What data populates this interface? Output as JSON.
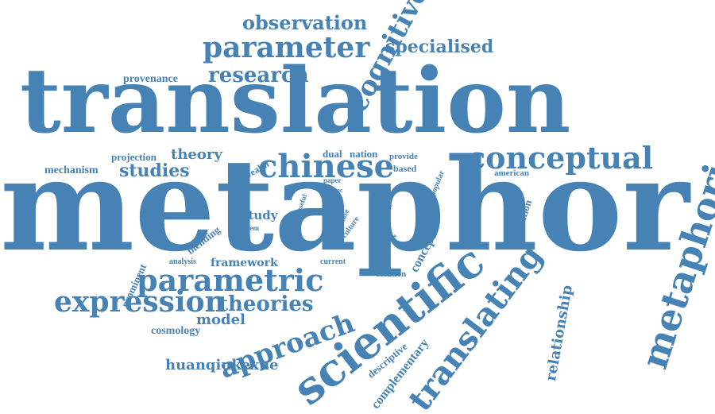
{
  "word_cloud": {
    "color": "#4682b4",
    "words": [
      "translation",
      "metaphor",
      "chinese",
      "conceptual",
      "metaphorical",
      "scientific",
      "translating",
      "parametric",
      "approach",
      "expression",
      "theories",
      "parameter",
      "observation",
      "cognitive",
      "specialised",
      "research",
      "provenance",
      "theory",
      "projection",
      "studies",
      "mechanism",
      "wealth",
      "dual",
      "nation",
      "provide",
      "based",
      "popular",
      "american",
      "paper",
      "proc",
      "text",
      "useful",
      "case",
      "type",
      "culture",
      "article",
      "future",
      "study",
      "system",
      "blending",
      "concept",
      "correlation",
      "relationship",
      "analysis",
      "framework",
      "current",
      "solution",
      "prominent",
      "model",
      "cosmology",
      "descriptive",
      "complementary",
      "huanqiukexue"
    ]
  }
}
